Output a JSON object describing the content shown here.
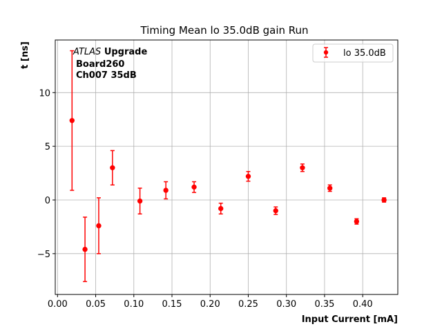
{
  "chart_data": {
    "type": "scatter",
    "title": "Timing Mean lo 35.0dB gain Run",
    "xlabel": "Input Current [mA]",
    "ylabel": "t [ns]",
    "xlim": [
      -0.003,
      0.446
    ],
    "ylim": [
      -8.8,
      14.9
    ],
    "xticks": [
      0.0,
      0.05,
      0.1,
      0.15,
      0.2,
      0.25,
      0.3,
      0.35,
      0.4
    ],
    "xtick_labels": [
      "0.00",
      "0.05",
      "0.10",
      "0.15",
      "0.20",
      "0.25",
      "0.30",
      "0.35",
      "0.40"
    ],
    "yticks": [
      -5,
      0,
      5,
      10
    ],
    "ytick_labels": [
      "−5",
      "0",
      "5",
      "10"
    ],
    "grid": true,
    "legend_position": "top-right",
    "colors": {
      "series": "#ff0000"
    },
    "annotation": {
      "line1_italic": "ATLAS",
      "line1_bold": "Upgrade",
      "line2": "Board260",
      "line3": "Ch007 35dB"
    },
    "series": [
      {
        "name": "lo 35.0dB",
        "x": [
          0.019,
          0.036,
          0.054,
          0.072,
          0.108,
          0.142,
          0.179,
          0.214,
          0.25,
          0.286,
          0.321,
          0.357,
          0.392,
          0.428
        ],
        "y": [
          7.4,
          -4.6,
          -2.4,
          3.0,
          -0.1,
          0.9,
          1.2,
          -0.8,
          2.2,
          -1.0,
          3.0,
          1.1,
          -2.0,
          0.0
        ],
        "yerr": [
          6.5,
          3.0,
          2.6,
          1.6,
          1.2,
          0.8,
          0.5,
          0.5,
          0.45,
          0.35,
          0.35,
          0.3,
          0.25,
          0.2
        ]
      }
    ]
  }
}
